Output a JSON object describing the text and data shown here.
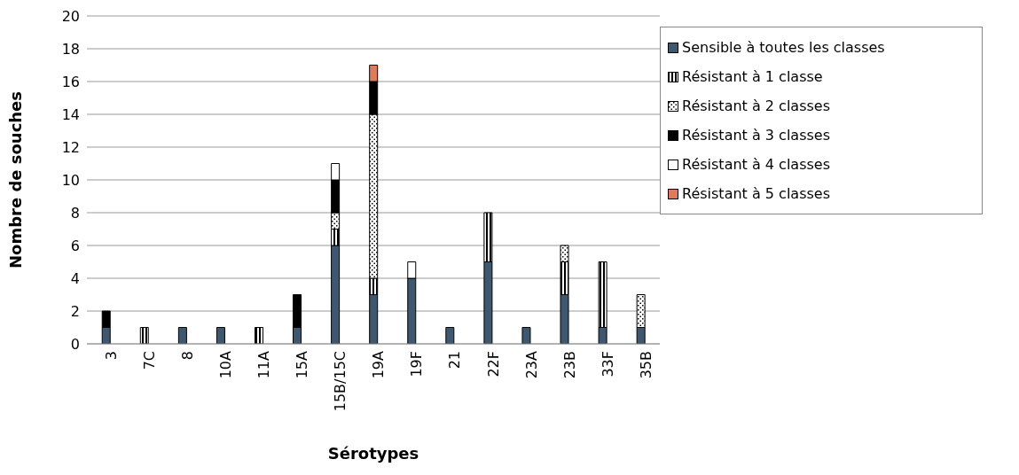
{
  "chart_data": {
    "type": "bar",
    "stacked": true,
    "xlabel": "Sérotypes",
    "ylabel": "Nombre de souches",
    "categories": [
      "3",
      "7C",
      "8",
      "10A",
      "11A",
      "15A",
      "15B/15C",
      "19A",
      "19F",
      "21",
      "22F",
      "23A",
      "23B",
      "33F",
      "35B"
    ],
    "series": [
      {
        "name": "Sensible à toutes les classes",
        "color": "#3e5870",
        "values": [
          1,
          0,
          1,
          1,
          0,
          1,
          6,
          3,
          4,
          1,
          5,
          1,
          3,
          1,
          1
        ]
      },
      {
        "name": "Résistant à 1 classe",
        "color": "#000000",
        "values": [
          0,
          1,
          0,
          0,
          1,
          0,
          1,
          1,
          0,
          0,
          3,
          0,
          2,
          4,
          0
        ]
      },
      {
        "name": "Résistant à 2 classes",
        "color": "#000000",
        "values": [
          0,
          0,
          0,
          0,
          0,
          0,
          1,
          10,
          0,
          0,
          0,
          0,
          1,
          0,
          2
        ]
      },
      {
        "name": "Résistant à 3 classes",
        "color": "#000000",
        "values": [
          1,
          0,
          0,
          0,
          0,
          2,
          2,
          2,
          0,
          0,
          0,
          0,
          0,
          0,
          0
        ]
      },
      {
        "name": "Résistant à 4 classes",
        "color": "#ffffff",
        "values": [
          0,
          0,
          0,
          0,
          0,
          0,
          1,
          0,
          1,
          0,
          0,
          0,
          0,
          0,
          0
        ]
      },
      {
        "name": "Résistant à 5 classes",
        "color": "#e07b5a",
        "values": [
          0,
          0,
          0,
          0,
          0,
          0,
          0,
          1,
          0,
          0,
          0,
          0,
          0,
          0,
          0
        ]
      }
    ],
    "ylim": [
      0,
      20
    ],
    "yticks": [
      0,
      2,
      4,
      6,
      8,
      10,
      12,
      14,
      16,
      18,
      20
    ],
    "grid": "y",
    "legend": "top right"
  }
}
